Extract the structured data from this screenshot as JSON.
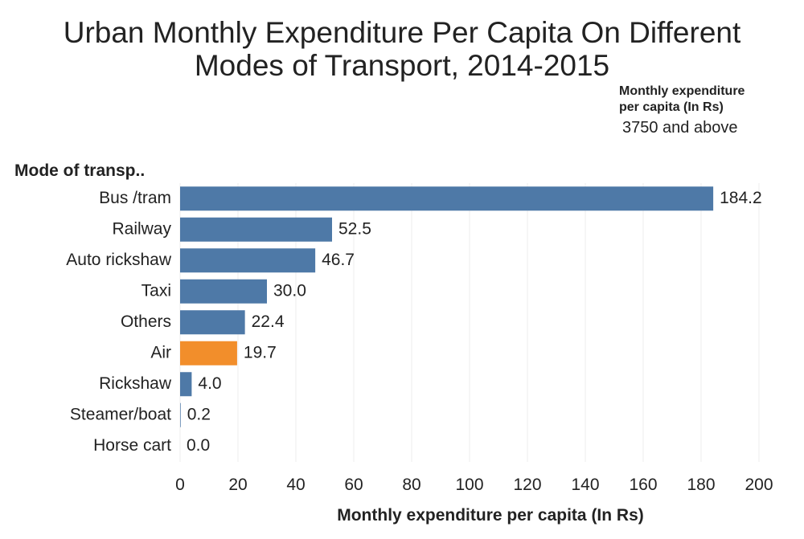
{
  "chart_data": {
    "type": "bar",
    "orientation": "horizontal",
    "title_lines": [
      "Urban Monthly Expenditure Per Capita On Different",
      "Modes of Transport, 2014-2015"
    ],
    "legend": {
      "heading_lines": [
        "Monthly expenditure",
        "per capita (In Rs)"
      ],
      "value": "3750 and above"
    },
    "category_header": "Mode of transp..",
    "categories": [
      "Bus /tram",
      "Railway",
      "Auto rickshaw",
      "Taxi",
      "Others",
      "Air",
      "Rickshaw",
      "Steamer/boat",
      "Horse cart"
    ],
    "values": [
      184.2,
      52.5,
      46.7,
      30.0,
      22.4,
      19.7,
      4.0,
      0.2,
      0.0
    ],
    "value_labels": [
      "184.2",
      "52.5",
      "46.7",
      "30.0",
      "22.4",
      "19.7",
      "4.0",
      "0.2",
      "0.0"
    ],
    "highlight_category": "Air",
    "xlabel": "Monthly expenditure per capita (In Rs)",
    "xlim": [
      0,
      215
    ],
    "xticks": [
      0,
      20,
      40,
      60,
      80,
      100,
      120,
      140,
      160,
      180,
      200
    ],
    "grid": true,
    "colors": {
      "bar": "#4e79a7",
      "highlight": "#f28e2b",
      "grid": "#ececec"
    }
  }
}
